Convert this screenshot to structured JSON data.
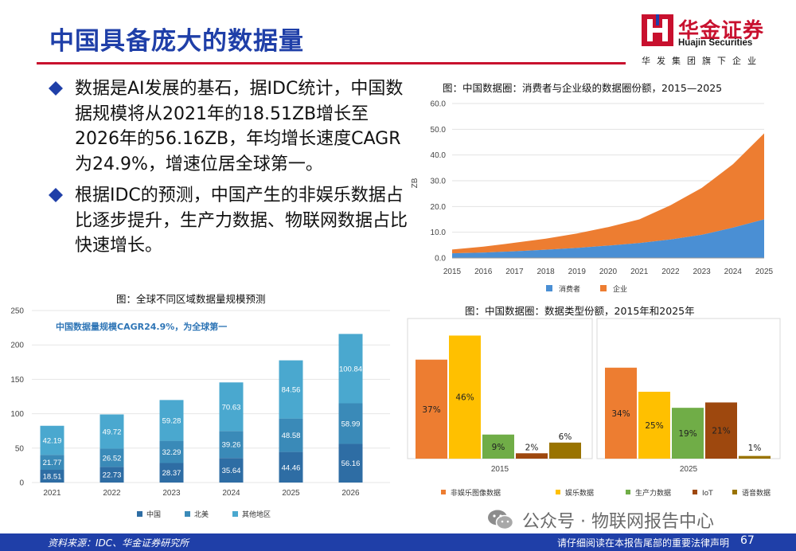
{
  "header": {
    "title": "中国具备庞大的数据量",
    "logo_cn": "华金证券",
    "logo_en": "Huajin Securities",
    "logo_sub": "华发集团旗下企业"
  },
  "bullets": [
    "数据是AI发展的基石，据IDC统计，中国数据规模将从2021年的18.51ZB增长至2026年的56.16ZB，年均增长速度CAGR为24.9%，增速位居全球第一。",
    "根据IDC的预测，中国产生的非娱乐数据占比逐步提升，生产力数据、物联网数据占比快速增长。"
  ],
  "colors": {
    "title_blue": "#1f3fa8",
    "brand_red": "#c8102e",
    "consumer_blue": "#4a8fd4",
    "enterprise_orange": "#ed7d31",
    "china": "#2e6da4",
    "north_america": "#3a8ab8",
    "other": "#4aa8cf"
  },
  "chart_data": [
    {
      "id": "area",
      "type": "area",
      "title": "图：中国数据圈：消费者与企业级的数据圈份额，2015—2025",
      "ylabel": "ZB",
      "ylim": [
        0,
        60
      ],
      "yticks": [
        "0.0",
        "10.0",
        "20.0",
        "30.0",
        "40.0",
        "50.0",
        "60.0"
      ],
      "x": [
        "2015",
        "2016",
        "2017",
        "2018",
        "2019",
        "2020",
        "2021",
        "2022",
        "2023",
        "2024",
        "2025"
      ],
      "series": [
        {
          "name": "消费者",
          "values": [
            1.8,
            2.1,
            2.6,
            3.2,
            3.9,
            4.8,
            5.8,
            7.2,
            9.0,
            11.8,
            15.0
          ]
        },
        {
          "name": "企业",
          "values": [
            1.5,
            2.3,
            3.3,
            4.3,
            5.6,
            7.2,
            9.2,
            13.3,
            18.2,
            24.6,
            33.4
          ]
        }
      ]
    },
    {
      "id": "stacked",
      "type": "bar",
      "title": "图：全球不同区域数据量规模预测",
      "annotation": "中国数据量规模CAGR24.9%，为全球第一",
      "ylim": [
        0,
        250
      ],
      "yticks": [
        "0",
        "50",
        "100",
        "150",
        "200",
        "250"
      ],
      "categories": [
        "2021",
        "2022",
        "2023",
        "2024",
        "2025",
        "2026"
      ],
      "series": [
        {
          "name": "中国",
          "values": [
            18.51,
            22.73,
            28.37,
            35.64,
            44.46,
            56.16
          ],
          "labels": [
            "18.51",
            "22.73",
            "28.37",
            "35.64",
            "44.46",
            "56.16"
          ]
        },
        {
          "name": "北美",
          "values": [
            21.77,
            26.52,
            32.29,
            39.26,
            48.58,
            58.99
          ],
          "labels": [
            "21.77",
            "26.52",
            "32.29",
            "39.26",
            "48.58",
            "58.99"
          ]
        },
        {
          "name": "其他地区",
          "values": [
            42.19,
            49.72,
            59.28,
            70.63,
            84.56,
            100.84
          ],
          "labels": [
            "42.19",
            "49.72",
            "59.28",
            "70.63",
            "84.56",
            "100.84"
          ]
        }
      ]
    },
    {
      "id": "grouped",
      "type": "bar",
      "title": "图：中国数据圈：数据类型份额，2015年和2025年",
      "ylim": [
        0,
        50
      ],
      "categories": [
        "2015",
        "2025"
      ],
      "series": [
        {
          "name": "非娱乐图像数据",
          "values": [
            37,
            34
          ],
          "labels": [
            "37%",
            "34%"
          ]
        },
        {
          "name": "娱乐数据",
          "values": [
            46,
            25
          ],
          "labels": [
            "46%",
            "25%"
          ]
        },
        {
          "name": "生产力数据",
          "values": [
            9,
            19
          ],
          "labels": [
            "9%",
            "19%"
          ]
        },
        {
          "name": "IoT",
          "values": [
            2,
            21
          ],
          "labels": [
            "2%",
            "21%"
          ]
        },
        {
          "name": "语音数据",
          "values": [
            6,
            1
          ],
          "labels": [
            "6%",
            "1%"
          ]
        }
      ]
    }
  ],
  "watermark": "公众号 · 物联网报告中心",
  "footer": {
    "source": "资料来源：IDC、华金证券研究所",
    "disclaimer": "请仔细阅读在本报告尾部的重要法律声明",
    "page": "67"
  }
}
